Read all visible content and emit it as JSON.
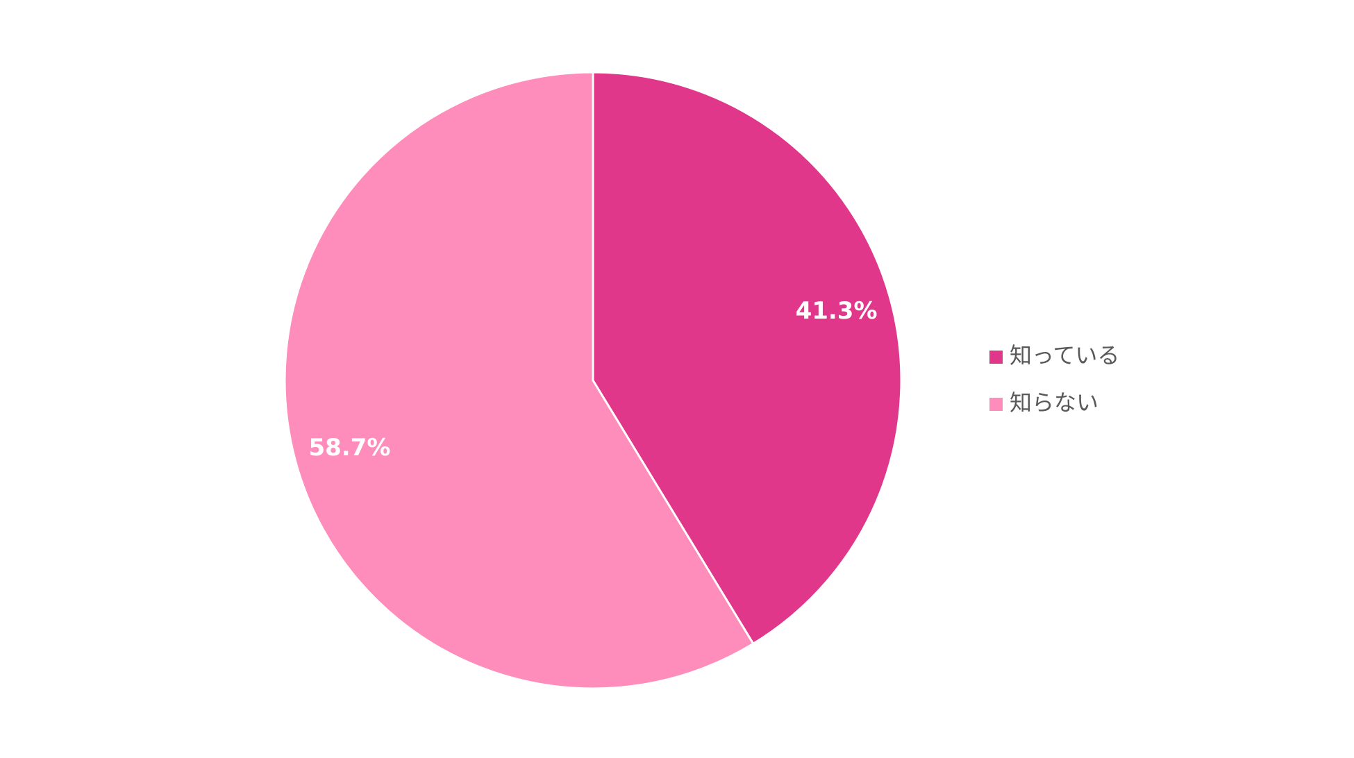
{
  "chart_data": {
    "type": "pie",
    "categories": [
      "知っている",
      "知らない"
    ],
    "values": [
      41.3,
      58.7
    ],
    "value_labels": [
      "41.3%",
      "58.7%"
    ],
    "colors": [
      "#e0378b",
      "#fe8dbb"
    ],
    "legend": "right"
  }
}
